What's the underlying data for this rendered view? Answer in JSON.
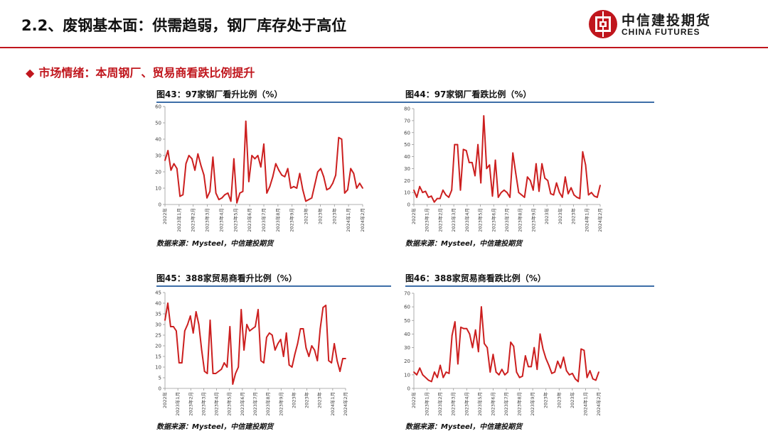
{
  "header": {
    "title": "2.2、废钢基本面：供需趋弱，钢厂库存处于高位",
    "logo_cn": "中信建投期货",
    "logo_en": "CHINA FUTURES"
  },
  "section": {
    "marker": "◆",
    "title": "市场情绪：本周钢厂、贸易商看跌比例提升"
  },
  "colors": {
    "accent": "#c0161d",
    "rule": "#3d6ea8",
    "series": "#cc1f1f",
    "axis": "#999999"
  },
  "panels": [
    {
      "title": "图43：97家钢厂看升比例（%）",
      "source": "数据来源：Mysteel，中信建投期货"
    },
    {
      "title": "图44：97家钢厂看跌比例（%）",
      "source": "数据来源：Mysteel，中信建投期货"
    },
    {
      "title": "图45：388家贸易商看升比例（%）",
      "source": "数据来源：Mysteel，中信建投期货"
    },
    {
      "title": "图46：388家贸易商看跌比例（%）",
      "source": "数据来源：Mysteel，中信建投期货"
    }
  ],
  "chart_data": [
    {
      "type": "line",
      "title": "图43：97家钢厂看升比例（%）",
      "ylim": [
        0,
        60
      ],
      "yticks": [
        0,
        10,
        20,
        30,
        40,
        50,
        60
      ],
      "xticks": [
        "2022年",
        "2023年1月",
        "2023年2月",
        "2023年3月",
        "2023年4月",
        "2023年5月",
        "2023年6月",
        "2023年7月",
        "2023年8月",
        "2023年9月",
        "2023年",
        "2023年",
        "2023年",
        "2024年1月",
        "2024年2月"
      ],
      "values": [
        27,
        33,
        21,
        25,
        22,
        5,
        6,
        25,
        30,
        28,
        21,
        31,
        24,
        18,
        4,
        8,
        29,
        7,
        3,
        4,
        6,
        7,
        2,
        28,
        1,
        7,
        8,
        51,
        14,
        30,
        28,
        30,
        23,
        37,
        7,
        11,
        17,
        25,
        21,
        18,
        17,
        22,
        10,
        11,
        10,
        19,
        9,
        2,
        3,
        4,
        12,
        20,
        22,
        17,
        9,
        10,
        13,
        18,
        41,
        40,
        7,
        9,
        22,
        19,
        10,
        13,
        10
      ]
    },
    {
      "type": "line",
      "title": "图44：97家钢厂看跌比例（%）",
      "ylim": [
        0,
        80
      ],
      "yticks": [
        0,
        10,
        20,
        30,
        40,
        50,
        60,
        70,
        80
      ],
      "xticks": [
        "2022年",
        "2023年1月",
        "2023年2月",
        "2023年3月",
        "2023年4月",
        "2023年5月",
        "2023年6月",
        "2023年7月",
        "2023年8月",
        "2023年9月",
        "2023年",
        "2023年",
        "2023年",
        "2024年1月",
        "2024年2月"
      ],
      "values": [
        12,
        6,
        15,
        10,
        11,
        6,
        7,
        2,
        5,
        5,
        12,
        8,
        6,
        12,
        50,
        50,
        12,
        46,
        45,
        35,
        35,
        24,
        50,
        18,
        74,
        30,
        33,
        7,
        37,
        6,
        10,
        12,
        10,
        6,
        43,
        26,
        10,
        8,
        6,
        23,
        20,
        12,
        34,
        11,
        34,
        22,
        20,
        9,
        8,
        18,
        10,
        6,
        23,
        9,
        14,
        8,
        6,
        5,
        44,
        33,
        8,
        10,
        7,
        6,
        16
      ]
    },
    {
      "type": "line",
      "title": "图45：388家贸易商看升比例（%）",
      "ylim": [
        0,
        45
      ],
      "yticks": [
        0,
        5,
        10,
        15,
        20,
        25,
        30,
        35,
        40,
        45
      ],
      "xticks": [
        "2022年",
        "2023年1月",
        "2023年2月",
        "2023年3月",
        "2023年4月",
        "2023年5月",
        "2023年6月",
        "2023年7月",
        "2023年8月",
        "2023年9月",
        "2023年",
        "2023年",
        "2023年",
        "2024年1月",
        "2024年2月"
      ],
      "values": [
        32,
        40,
        29,
        29,
        27,
        12,
        12,
        27,
        30,
        34,
        26,
        36,
        30,
        18,
        8,
        7,
        32,
        7,
        7,
        8,
        9,
        12,
        10,
        29,
        2,
        7,
        10,
        37,
        18,
        30,
        27,
        28,
        29,
        37,
        13,
        12,
        24,
        26,
        25,
        18,
        21,
        23,
        15,
        26,
        11,
        10,
        16,
        21,
        28,
        28,
        19,
        15,
        20,
        18,
        13,
        28,
        38,
        39,
        13,
        12,
        21,
        13,
        8,
        14,
        14
      ]
    },
    {
      "type": "line",
      "title": "图46：388家贸易商看跌比例（%）",
      "ylim": [
        0,
        70
      ],
      "yticks": [
        0,
        10,
        20,
        30,
        40,
        50,
        60,
        70
      ],
      "xticks": [
        "2022年",
        "2023年1月",
        "2023年2月",
        "2023年3月",
        "2023年4月",
        "2023年5月",
        "2023年6月",
        "2023年7月",
        "2023年8月",
        "2023年9月",
        "2023年",
        "2023年",
        "2023年",
        "2024年1月",
        "2024年2月"
      ],
      "values": [
        12,
        10,
        15,
        10,
        8,
        6,
        5,
        12,
        8,
        17,
        8,
        12,
        11,
        39,
        49,
        18,
        45,
        44,
        44,
        40,
        30,
        43,
        27,
        60,
        33,
        30,
        12,
        25,
        12,
        10,
        14,
        10,
        12,
        34,
        31,
        12,
        8,
        9,
        24,
        16,
        16,
        30,
        14,
        40,
        29,
        22,
        17,
        11,
        12,
        20,
        15,
        23,
        13,
        10,
        11,
        7,
        5,
        29,
        28,
        8,
        13,
        7,
        6,
        12
      ]
    }
  ]
}
